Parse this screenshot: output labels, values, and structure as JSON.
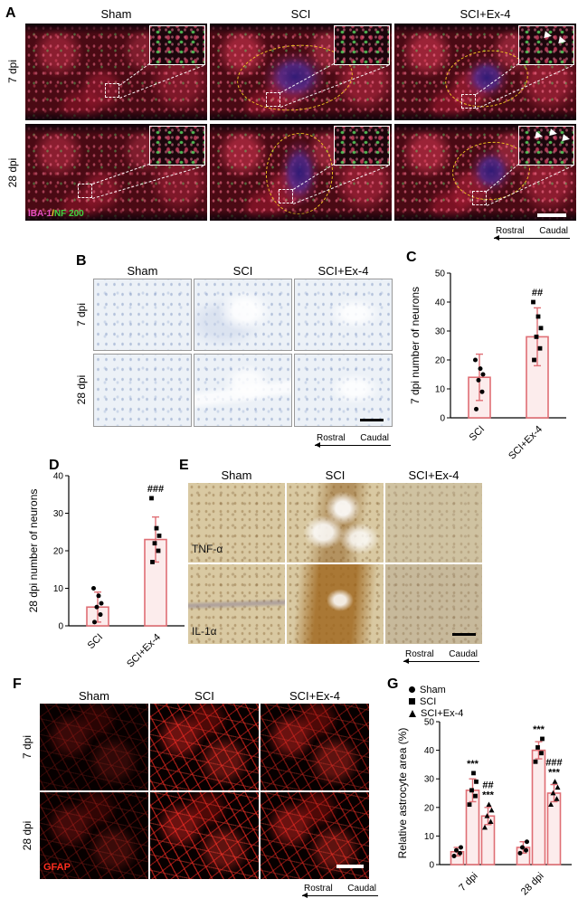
{
  "panel_a": {
    "label": "A",
    "col_headers": [
      "Sham",
      "SCI",
      "SCI+Ex-4"
    ],
    "row_labels": [
      "7 dpi",
      "28 dpi"
    ],
    "stain_labels": {
      "iba1": "IBA-1",
      "slash": "/",
      "nf200": "NF 200"
    },
    "colors": {
      "iba1": "#e54fc0",
      "slash": "#ffe135",
      "nf200": "#41d341"
    }
  },
  "panel_b": {
    "label": "B",
    "col_headers": [
      "Sham",
      "SCI",
      "SCI+Ex-4"
    ],
    "row_labels": [
      "7 dpi",
      "28 dpi"
    ]
  },
  "panel_c": {
    "label": "C"
  },
  "panel_d": {
    "label": "D"
  },
  "panel_e": {
    "label": "E",
    "col_headers": [
      "Sham",
      "SCI",
      "SCI+Ex-4"
    ],
    "row_labels": [
      "TNF-α",
      "IL-1α"
    ]
  },
  "panel_f": {
    "label": "F",
    "col_headers": [
      "Sham",
      "SCI",
      "SCI+Ex-4"
    ],
    "row_labels": [
      "7 dpi",
      "28 dpi"
    ],
    "stain_label": "GFAP",
    "colors": {
      "gfap": "#ff2d1e"
    }
  },
  "panel_g": {
    "label": "G",
    "legend": [
      {
        "label": "Sham",
        "marker": "circle"
      },
      {
        "label": "SCI",
        "marker": "square"
      },
      {
        "label": "SCI+Ex-4",
        "marker": "triangle"
      }
    ]
  },
  "direction_indicator": {
    "left": "Rostral",
    "right": "Caudal"
  },
  "chart_data": [
    {
      "id": "c",
      "type": "bar",
      "panel": "C",
      "ylabel": "7 dpi number of neurons",
      "ylim": [
        0,
        50
      ],
      "yticks": [
        0,
        10,
        20,
        30,
        40,
        50
      ],
      "categories": [
        "SCI",
        "SCI+Ex-4"
      ],
      "values": [
        14,
        28
      ],
      "errors": [
        8,
        10
      ],
      "points": [
        [
          3,
          9,
          13,
          15,
          17,
          20
        ],
        [
          20,
          24,
          28,
          31,
          35,
          40
        ]
      ],
      "markers": [
        "circle",
        "square"
      ],
      "annotations": [
        {
          "index": 1,
          "lines": [
            "##"
          ]
        }
      ],
      "bar_color": "#df6e74",
      "bar_fill": "#fcecec"
    },
    {
      "id": "d",
      "type": "bar",
      "panel": "D",
      "ylabel": "28 dpi number of neurons",
      "ylim": [
        0,
        40
      ],
      "yticks": [
        0,
        10,
        20,
        30,
        40
      ],
      "categories": [
        "SCI",
        "SCI+Ex-4"
      ],
      "values": [
        5,
        23
      ],
      "errors": [
        4,
        6
      ],
      "points": [
        [
          1,
          3,
          5,
          6,
          8,
          10
        ],
        [
          17,
          20,
          22,
          24,
          26,
          34
        ]
      ],
      "markers": [
        "circle",
        "square"
      ],
      "annotations": [
        {
          "index": 1,
          "lines": [
            "###"
          ]
        }
      ],
      "bar_color": "#df6e74",
      "bar_fill": "#fcecec"
    },
    {
      "id": "g",
      "type": "bar",
      "panel": "G",
      "ylabel": "Relative astrocyte area (%)",
      "ylim": [
        0,
        50
      ],
      "yticks": [
        0,
        10,
        20,
        30,
        40,
        50
      ],
      "categories": [
        "7 dpi",
        "28 dpi"
      ],
      "legend_position": "top-left",
      "series": [
        {
          "name": "Sham",
          "marker": "circle",
          "values": [
            4.5,
            6
          ],
          "errors": [
            1.5,
            2
          ],
          "points": [
            [
              3,
              4,
              5,
              6
            ],
            [
              4,
              5,
              6,
              8
            ]
          ]
        },
        {
          "name": "SCI",
          "marker": "square",
          "values": [
            26,
            40
          ],
          "errors": [
            4,
            3
          ],
          "points": [
            [
              21,
              24,
              26,
              29,
              32
            ],
            [
              36,
              39,
              41,
              44
            ]
          ],
          "annotations": [
            [
              "***"
            ],
            [
              "***"
            ]
          ]
        },
        {
          "name": "SCI+Ex-4",
          "marker": "triangle",
          "values": [
            17,
            25
          ],
          "errors": [
            3,
            3
          ],
          "points": [
            [
              13,
              15,
              17,
              19,
              21
            ],
            [
              21,
              23,
              25,
              27,
              29
            ]
          ],
          "annotations": [
            [
              "##",
              "***"
            ],
            [
              "###",
              "***"
            ]
          ]
        }
      ],
      "bar_color": "#df6e74",
      "bar_fill": "#fcecec"
    }
  ]
}
